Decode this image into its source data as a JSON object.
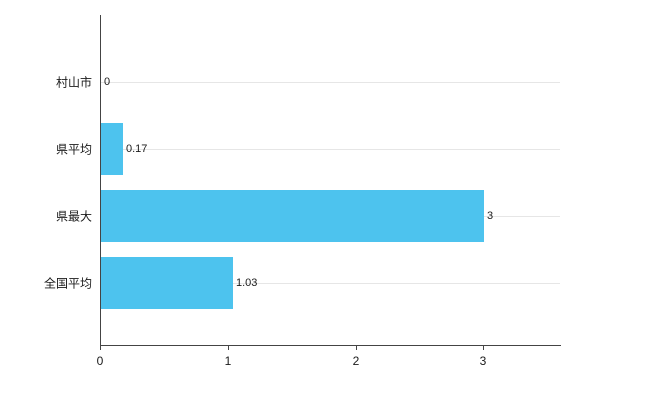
{
  "chart_data": {
    "type": "bar",
    "orientation": "horizontal",
    "title": "",
    "xlabel": "",
    "ylabel": "",
    "categories": [
      "村山市",
      "県平均",
      "県最大",
      "全国平均"
    ],
    "values": [
      0,
      0.17,
      3,
      1.03
    ],
    "value_labels": [
      "0",
      "0.17",
      "3",
      "1.03"
    ],
    "xlim": [
      0,
      3.6
    ],
    "xticks": [
      0,
      1,
      2,
      3
    ],
    "grid": "horizontal-lines-at-category-centers",
    "legend": "none",
    "bar_color": "#4dc3ee",
    "axis_color": "#444444",
    "grid_color": "#e6e6e6",
    "background_color": "#ffffff",
    "text_color": "#1a1a1a"
  }
}
